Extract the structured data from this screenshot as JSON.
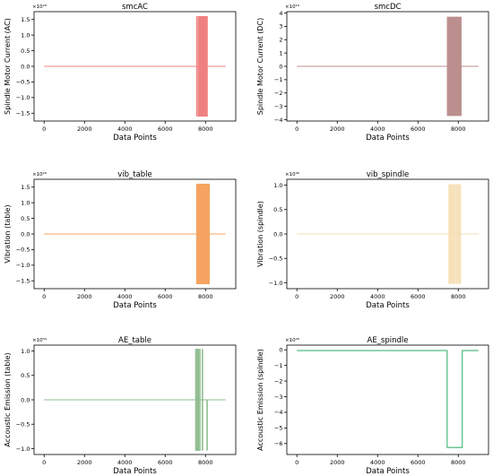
{
  "chart_data": [
    {
      "type": "line",
      "title": "smcAC",
      "xlabel": "Data Points",
      "ylabel": "Spindle Motor Current (AC)",
      "offset_text": "×10²⁹",
      "color": "#f08080",
      "xlim": [
        -500,
        9500
      ],
      "ylim": [
        -1.75,
        1.75
      ],
      "xticks": [
        0,
        2000,
        4000,
        6000,
        8000
      ],
      "xtick_labels": [
        "0",
        "2000",
        "4000",
        "6000",
        "8000"
      ],
      "yticks": [
        -1.5,
        -1.0,
        -0.5,
        0.0,
        0.5,
        1.0,
        1.5
      ],
      "ytick_labels": [
        "−1.5",
        "−1.0",
        "−0.5",
        "0.0",
        "0.5",
        "1.0",
        "1.5"
      ],
      "baseline": {
        "x": [
          0,
          9000
        ],
        "y": 0
      },
      "bands": [
        {
          "x0": 7550,
          "x1": 7600,
          "y0": -1.6,
          "y1": 1.6
        },
        {
          "x0": 7640,
          "x1": 8100,
          "y0": -1.6,
          "y1": 1.6
        }
      ],
      "spikes": []
    },
    {
      "type": "line",
      "title": "smcDC",
      "xlabel": "Data Points",
      "ylabel": "Spindle Motor Current (DC)",
      "offset_text": "×10¹⁹",
      "color": "#bc8f8f",
      "xlim": [
        -500,
        9500
      ],
      "ylim": [
        -4.1,
        4.1
      ],
      "xticks": [
        0,
        2000,
        4000,
        6000,
        8000
      ],
      "xtick_labels": [
        "0",
        "2000",
        "4000",
        "6000",
        "8000"
      ],
      "yticks": [
        -4,
        -3,
        -2,
        -1,
        0,
        1,
        2,
        3,
        4
      ],
      "ytick_labels": [
        "−4",
        "−3",
        "−2",
        "−1",
        "0",
        "1",
        "2",
        "3",
        "4"
      ],
      "baseline": {
        "x": [
          0,
          9000
        ],
        "y": 0
      },
      "bands": [
        {
          "x0": 7450,
          "x1": 8150,
          "y0": -3.7,
          "y1": 3.7
        }
      ],
      "spikes": []
    },
    {
      "type": "line",
      "title": "vib_table",
      "xlabel": "Data Points",
      "ylabel": "Vibration (table)",
      "offset_text": "×10²⁹",
      "color": "#f4a460",
      "xlim": [
        -500,
        9500
      ],
      "ylim": [
        -1.75,
        1.75
      ],
      "xticks": [
        0,
        2000,
        4000,
        6000,
        8000
      ],
      "xtick_labels": [
        "0",
        "2000",
        "4000",
        "6000",
        "8000"
      ],
      "yticks": [
        -1.5,
        -1.0,
        -0.5,
        0.0,
        0.5,
        1.0,
        1.5
      ],
      "ytick_labels": [
        "−1.5",
        "−1.0",
        "−0.5",
        "0.0",
        "0.5",
        "1.0",
        "1.5"
      ],
      "baseline": {
        "x": [
          0,
          9000
        ],
        "y": 0
      },
      "bands": [
        {
          "x0": 7550,
          "x1": 8200,
          "y0": -1.6,
          "y1": 1.6
        }
      ],
      "spikes": []
    },
    {
      "type": "line",
      "title": "vib_spindle",
      "xlabel": "Data Points",
      "ylabel": "Vibration (spindle)",
      "offset_text": "×10³⁶",
      "color": "#f5deb3",
      "xlim": [
        -500,
        9500
      ],
      "ylim": [
        -1.12,
        1.12
      ],
      "xticks": [
        0,
        2000,
        4000,
        6000,
        8000
      ],
      "xtick_labels": [
        "0",
        "2000",
        "4000",
        "6000",
        "8000"
      ],
      "yticks": [
        -1.0,
        -0.5,
        0.0,
        0.5,
        1.0
      ],
      "ytick_labels": [
        "−1.0",
        "−0.5",
        "0.0",
        "0.5",
        "1.0"
      ],
      "baseline": {
        "x": [
          0,
          9000
        ],
        "y": 0
      },
      "bands": [],
      "spikes": [
        {
          "x": 7550,
          "y0": -1.02,
          "y1": 1.02
        },
        {
          "x": 7620,
          "y0": -1.02,
          "y1": 1.02
        },
        {
          "x": 7700,
          "y0": -1.02,
          "y1": 1.02
        },
        {
          "x": 7780,
          "y0": -1.02,
          "y1": 1.02
        },
        {
          "x": 7860,
          "y0": -1.02,
          "y1": 1.02
        },
        {
          "x": 7940,
          "y0": -1.02,
          "y1": 1.02
        },
        {
          "x": 8020,
          "y0": -1.02,
          "y1": 1.02
        },
        {
          "x": 8100,
          "y0": -1.02,
          "y1": 1.02
        }
      ]
    },
    {
      "type": "line",
      "title": "AE_table",
      "xlabel": "Data Points",
      "ylabel": "Accoustic Emission (table)",
      "offset_text": "×10³⁴",
      "color": "#8fbc8f",
      "xlim": [
        -500,
        9500
      ],
      "ylim": [
        -1.12,
        1.12
      ],
      "xticks": [
        0,
        2000,
        4000,
        6000,
        8000
      ],
      "xtick_labels": [
        "0",
        "2000",
        "4000",
        "6000",
        "8000"
      ],
      "yticks": [
        -1.0,
        -0.5,
        0.0,
        0.5,
        1.0
      ],
      "ytick_labels": [
        "−1.0",
        "−0.5",
        "0.0",
        "0.5",
        "1.0"
      ],
      "baseline": {
        "x": [
          0,
          9000
        ],
        "y": 0
      },
      "bands": [
        {
          "x0": 7500,
          "x1": 7540,
          "y0": -1.04,
          "y1": 1.04
        },
        {
          "x0": 7570,
          "x1": 7600,
          "y0": -1.04,
          "y1": 1.04
        },
        {
          "x0": 7620,
          "x1": 7650,
          "y0": -1.04,
          "y1": 1.04
        },
        {
          "x0": 7700,
          "x1": 7720,
          "y0": -1.04,
          "y1": 1.04
        }
      ],
      "spikes": [
        {
          "x": 7850,
          "y0": -1.04,
          "y1": 1.04
        },
        {
          "x": 8080,
          "y0": -1.04,
          "y1": 0.0
        }
      ]
    },
    {
      "type": "line",
      "title": "AE_spindle",
      "xlabel": "Data Points",
      "ylabel": "Accoustic Emission (spindle)",
      "offset_text": "×10²⁶",
      "color": "#3cb371",
      "xlim": [
        -500,
        9500
      ],
      "ylim": [
        -6.7,
        0.3
      ],
      "xticks": [
        0,
        2000,
        4000,
        6000,
        8000
      ],
      "xtick_labels": [
        "0",
        "2000",
        "4000",
        "6000",
        "8000"
      ],
      "yticks": [
        -6,
        -5,
        -4,
        -3,
        -2,
        -1,
        0
      ],
      "ytick_labels": [
        "−6",
        "−5",
        "−4",
        "−3",
        "−2",
        "−1",
        "0"
      ],
      "step": {
        "x": [
          0,
          7450,
          7450,
          8200,
          8200,
          9000
        ],
        "y": [
          -0.05,
          -0.05,
          -6.25,
          -6.25,
          -0.05,
          -0.05
        ]
      },
      "bands": [],
      "spikes": []
    }
  ]
}
